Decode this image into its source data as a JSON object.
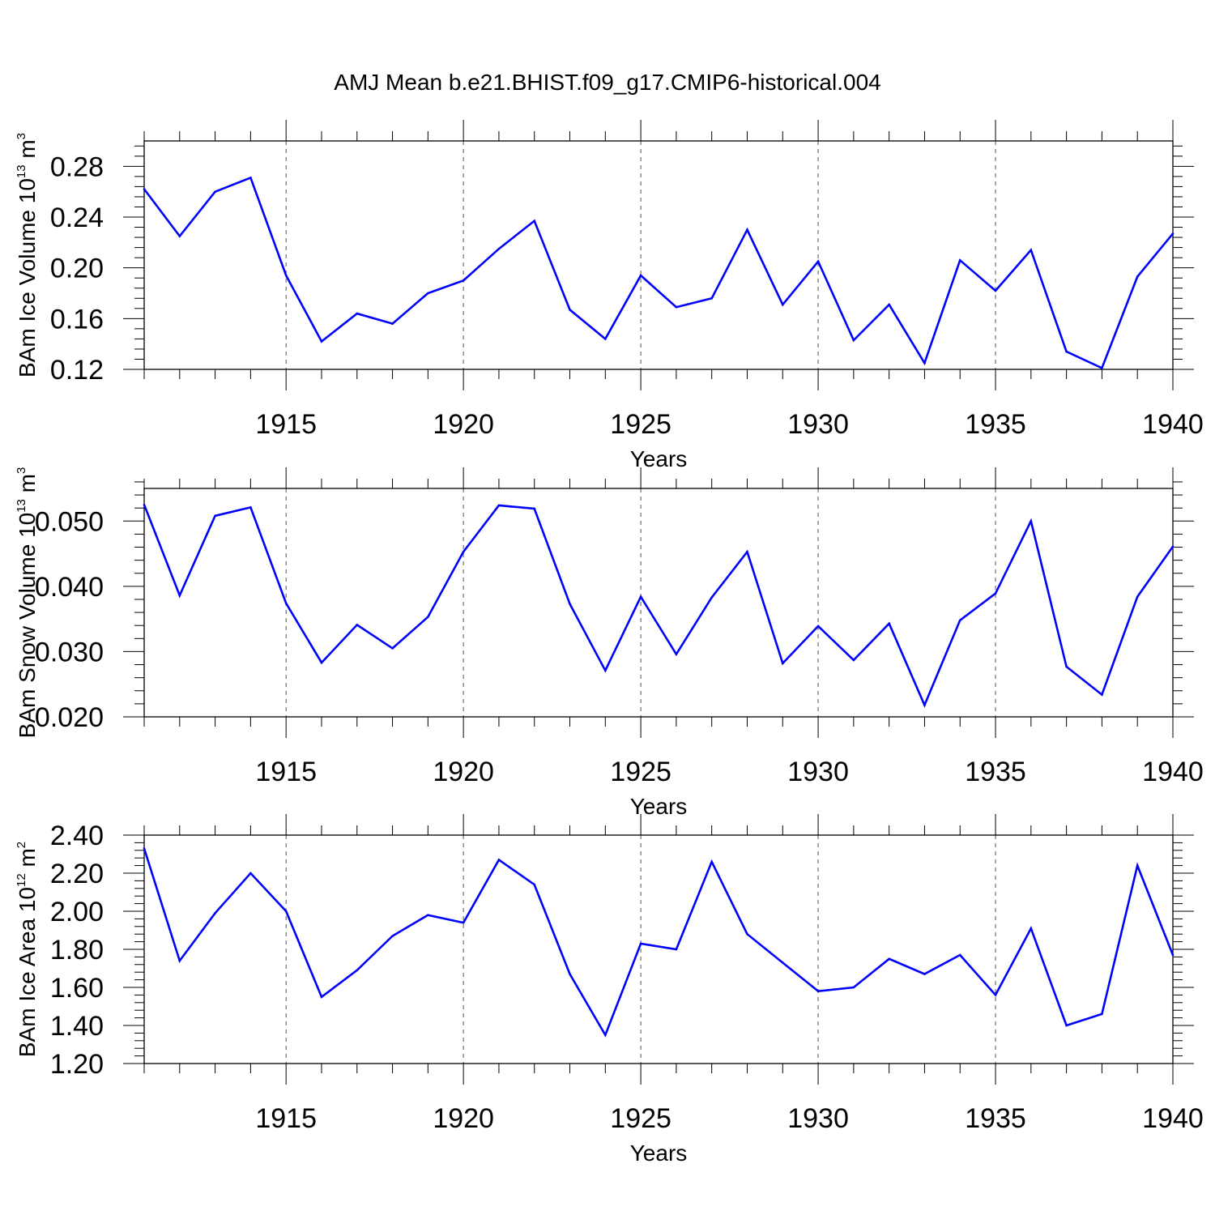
{
  "title": "AMJ Mean b.e21.BHIST.f09_g17.CMIP6-historical.004",
  "colors": {
    "series": "#0000ff",
    "axis": "#000000",
    "grid": "#555555"
  },
  "chart_data": [
    {
      "type": "line",
      "xlabel": "Years",
      "ylabel": {
        "text": "BAm Ice Volume 10",
        "exp1": "13",
        "mid": " m",
        "exp2": "3"
      },
      "xlim": [
        1911,
        1940
      ],
      "ylim": [
        0.12,
        0.3
      ],
      "xticks": [
        "1915",
        "1920",
        "1925",
        "1930",
        "1935",
        "1940"
      ],
      "yticks": [
        "0.12",
        "0.16",
        "0.20",
        "0.24",
        "0.28"
      ],
      "grid": "vertical dashed at major x ticks",
      "x": [
        1911,
        1912,
        1913,
        1914,
        1915,
        1916,
        1917,
        1918,
        1919,
        1920,
        1921,
        1922,
        1923,
        1924,
        1925,
        1926,
        1927,
        1928,
        1929,
        1930,
        1931,
        1932,
        1933,
        1934,
        1935,
        1936,
        1937,
        1938,
        1939,
        1940
      ],
      "values": [
        0.262,
        0.225,
        0.26,
        0.271,
        0.194,
        0.142,
        0.164,
        0.156,
        0.18,
        0.19,
        0.215,
        0.237,
        0.167,
        0.144,
        0.194,
        0.169,
        0.176,
        0.23,
        0.171,
        0.205,
        0.143,
        0.171,
        0.125,
        0.206,
        0.182,
        0.214,
        0.134,
        0.121,
        0.193,
        0.227
      ]
    },
    {
      "type": "line",
      "xlabel": "Years",
      "ylabel": {
        "text": "BAm Snow Volume 10",
        "exp1": "13",
        "mid": " m",
        "exp2": "3"
      },
      "xlim": [
        1911,
        1940
      ],
      "ylim": [
        0.02,
        0.055
      ],
      "xticks": [
        "1915",
        "1920",
        "1925",
        "1930",
        "1935",
        "1940"
      ],
      "yticks": [
        "0.020",
        "0.030",
        "0.040",
        "0.050"
      ],
      "grid": "vertical dashed at major x ticks",
      "x": [
        1911,
        1912,
        1913,
        1914,
        1915,
        1916,
        1917,
        1918,
        1919,
        1920,
        1921,
        1922,
        1923,
        1924,
        1925,
        1926,
        1927,
        1928,
        1929,
        1930,
        1931,
        1932,
        1933,
        1934,
        1935,
        1936,
        1937,
        1938,
        1939,
        1940
      ],
      "values": [
        0.0525,
        0.0386,
        0.0508,
        0.0521,
        0.0374,
        0.0283,
        0.0341,
        0.0305,
        0.0353,
        0.0453,
        0.0524,
        0.0519,
        0.0373,
        0.0271,
        0.0384,
        0.0296,
        0.0383,
        0.0453,
        0.0282,
        0.0339,
        0.0287,
        0.0343,
        0.0218,
        0.0348,
        0.0389,
        0.05,
        0.0277,
        0.0234,
        0.0384,
        0.0461
      ]
    },
    {
      "type": "line",
      "xlabel": "Years",
      "ylabel": {
        "text": "BAm Ice Area 10",
        "exp1": "12",
        "mid": " m",
        "exp2": "2"
      },
      "xlim": [
        1911,
        1940
      ],
      "ylim": [
        1.2,
        2.4
      ],
      "xticks": [
        "1915",
        "1920",
        "1925",
        "1930",
        "1935",
        "1940"
      ],
      "yticks": [
        "1.20",
        "1.40",
        "1.60",
        "1.80",
        "2.00",
        "2.20",
        "2.40"
      ],
      "grid": "vertical dashed at major x ticks",
      "x": [
        1911,
        1912,
        1913,
        1914,
        1915,
        1916,
        1917,
        1918,
        1919,
        1920,
        1921,
        1922,
        1923,
        1924,
        1925,
        1926,
        1927,
        1928,
        1929,
        1930,
        1931,
        1932,
        1933,
        1934,
        1935,
        1936,
        1937,
        1938,
        1939,
        1940
      ],
      "values": [
        2.33,
        1.74,
        1.99,
        2.2,
        2.0,
        1.55,
        1.69,
        1.87,
        1.98,
        1.94,
        2.27,
        2.14,
        1.67,
        1.35,
        1.83,
        1.8,
        2.26,
        1.88,
        1.73,
        1.58,
        1.6,
        1.75,
        1.67,
        1.77,
        1.56,
        1.91,
        1.4,
        1.46,
        2.24,
        1.77
      ]
    }
  ]
}
